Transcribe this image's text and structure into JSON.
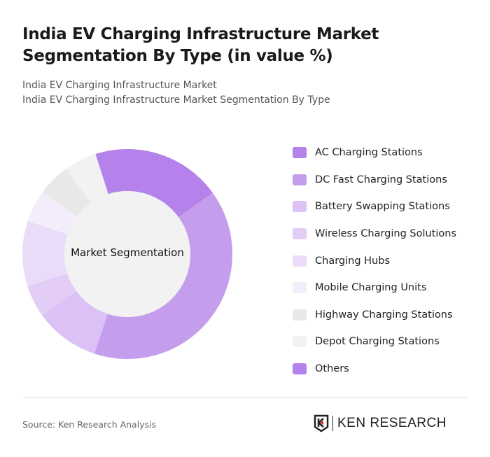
{
  "header": {
    "title": "India EV Charging Infrastructure Market Segmentation By Type (in value %)",
    "subtitle1": "India EV Charging Infrastructure Market",
    "subtitle2": "India EV Charging Infrastructure Market Segmentation By Type"
  },
  "chart_data": {
    "type": "donut",
    "center_label": "Market Segmentation",
    "legend_position": "right",
    "categories": [
      "AC Charging Stations",
      "DC Fast Charging Stations",
      "Battery Swapping Stations",
      "Wireless Charging Solutions",
      "Charging Hubs",
      "Mobile Charging Units",
      "Highway Charging Stations",
      "Depot Charging Stations",
      "Others"
    ],
    "values": [
      20,
      40,
      10,
      5,
      10,
      5,
      5,
      5,
      0
    ],
    "colors": [
      "#b482ea",
      "#c59ded",
      "#dbc1f5",
      "#e3cdf6",
      "#eadcf9",
      "#f3ecfb",
      "#e8e8e8",
      "#f2f2f2",
      "#b482ea"
    ]
  },
  "footer": {
    "source": "Source: Ken Research Analysis",
    "logo_text": "KEN RESEARCH"
  }
}
